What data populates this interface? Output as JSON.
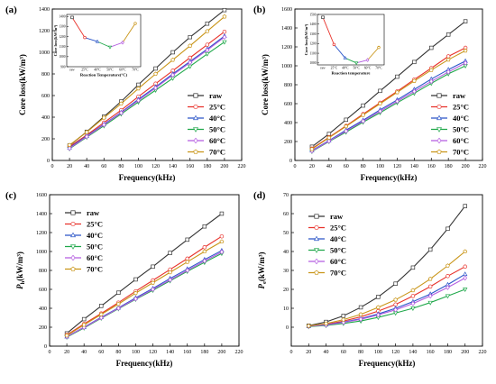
{
  "chart_data": [
    {
      "type": "line",
      "panel_label": "(a)",
      "xlabel": "Frequency(kHz)",
      "ylabel": "Core loss(kW/m³)",
      "xlim": [
        0,
        220
      ],
      "ylim": [
        0,
        1400
      ],
      "xticks": [
        0,
        20,
        40,
        60,
        80,
        100,
        120,
        140,
        160,
        180,
        200,
        220
      ],
      "yticks": [
        0,
        200,
        400,
        600,
        800,
        1000,
        1200,
        1400
      ],
      "x": [
        20,
        40,
        60,
        80,
        100,
        120,
        140,
        160,
        180,
        200
      ],
      "series": [
        {
          "name": "raw",
          "color": "#333333",
          "marker": "square",
          "values": [
            138,
            265,
            405,
            545,
            700,
            850,
            1000,
            1140,
            1265,
            1390
          ]
        },
        {
          "name": "25°C",
          "color": "#e8312a",
          "marker": "circle",
          "values": [
            128,
            235,
            350,
            465,
            590,
            710,
            830,
            950,
            1070,
            1190
          ]
        },
        {
          "name": "40°C",
          "color": "#2a55c8",
          "marker": "triangle-up",
          "values": [
            118,
            225,
            335,
            445,
            565,
            680,
            800,
            915,
            1030,
            1150
          ]
        },
        {
          "name": "50°C",
          "color": "#1fa84a",
          "marker": "triangle-down",
          "values": [
            108,
            215,
            320,
            430,
            540,
            650,
            760,
            870,
            985,
            1095
          ]
        },
        {
          "name": "60°C",
          "color": "#b35ce0",
          "marker": "diamond",
          "values": [
            112,
            220,
            330,
            440,
            555,
            670,
            790,
            905,
            1020,
            1140
          ]
        },
        {
          "name": "70°C",
          "color": "#c99518",
          "marker": "pentagon",
          "values": [
            142,
            262,
            395,
            525,
            665,
            800,
            930,
            1060,
            1195,
            1330
          ]
        }
      ],
      "inset": {
        "xlabel": "Reaction Temperature(°C)",
        "ylabel": "Core loss(kW/m³)",
        "categories": [
          "raw",
          "25°C",
          "40°C",
          "50°C",
          "60°C",
          "70°C"
        ],
        "yticks": [
          900,
          1000,
          1100,
          1200,
          1300,
          1400
        ],
        "ylim": [
          900,
          1420
        ],
        "values": [
          1390,
          1190,
          1150,
          1095,
          1140,
          1330
        ]
      }
    },
    {
      "type": "line",
      "panel_label": "(b)",
      "xlabel": "Frequency(kHz)",
      "ylabel": "Core loss(kW/m³)",
      "xlim": [
        0,
        220
      ],
      "ylim": [
        0,
        1600
      ],
      "xticks": [
        0,
        20,
        40,
        60,
        80,
        100,
        120,
        140,
        160,
        180,
        200,
        220
      ],
      "yticks": [
        0,
        200,
        400,
        600,
        800,
        1000,
        1200,
        1400,
        1600
      ],
      "x": [
        20,
        40,
        60,
        80,
        100,
        120,
        140,
        160,
        180,
        200
      ],
      "series": [
        {
          "name": "raw",
          "color": "#333333",
          "marker": "square",
          "values": [
            145,
            280,
            430,
            580,
            735,
            885,
            1040,
            1190,
            1330,
            1470
          ]
        },
        {
          "name": "25°C",
          "color": "#e8312a",
          "marker": "circle",
          "values": [
            125,
            245,
            365,
            490,
            610,
            730,
            855,
            975,
            1100,
            1190
          ]
        },
        {
          "name": "40°C",
          "color": "#2a55c8",
          "marker": "triangle-up",
          "values": [
            105,
            210,
            320,
            425,
            535,
            640,
            750,
            860,
            960,
            1050
          ]
        },
        {
          "name": "50°C",
          "color": "#1fa84a",
          "marker": "triangle-down",
          "values": [
            95,
            200,
            300,
            405,
            505,
            610,
            710,
            815,
            915,
            1000
          ]
        },
        {
          "name": "60°C",
          "color": "#b35ce0",
          "marker": "diamond",
          "values": [
            100,
            205,
            310,
            415,
            520,
            625,
            730,
            835,
            935,
            1030
          ]
        },
        {
          "name": "70°C",
          "color": "#c99518",
          "marker": "pentagon",
          "values": [
            120,
            240,
            360,
            480,
            600,
            720,
            840,
            955,
            1065,
            1160
          ]
        }
      ],
      "inset": {
        "xlabel": "Reaction temperature",
        "ylabel": "Core loss(kW/m³)",
        "categories": [
          "raw",
          "25°C",
          "40°C",
          "50°C",
          "60°C",
          "70°C"
        ],
        "yticks": [
          1000,
          1100,
          1200,
          1300,
          1400,
          1500
        ],
        "ylim": [
          980,
          1500
        ],
        "values": [
          1470,
          1190,
          1050,
          1000,
          1030,
          1160
        ]
      }
    },
    {
      "type": "line",
      "panel_label": "(c)",
      "xlabel": "Frequency(kHz)",
      "ylabel": "Ph(kW/m³)",
      "ylabel_main": "P",
      "ylabel_sub": "h",
      "ylabel_rest": "(kW/m³)",
      "xlim": [
        0,
        220
      ],
      "ylim": [
        0,
        1600
      ],
      "xticks": [
        0,
        20,
        40,
        60,
        80,
        100,
        120,
        140,
        160,
        180,
        200,
        220
      ],
      "yticks": [
        0,
        200,
        400,
        600,
        800,
        1000,
        1200,
        1400,
        1600
      ],
      "x": [
        20,
        40,
        60,
        80,
        100,
        120,
        140,
        160,
        180,
        200
      ],
      "series": [
        {
          "name": "raw",
          "color": "#333333",
          "marker": "square",
          "values": [
            135,
            285,
            425,
            565,
            705,
            840,
            985,
            1125,
            1265,
            1400
          ]
        },
        {
          "name": "25°C",
          "color": "#e8312a",
          "marker": "circle",
          "values": [
            118,
            235,
            345,
            460,
            580,
            695,
            810,
            925,
            1045,
            1160
          ]
        },
        {
          "name": "40°C",
          "color": "#2a55c8",
          "marker": "triangle-up",
          "values": [
            100,
            200,
            305,
            405,
            510,
            610,
            715,
            815,
            915,
            1010
          ]
        },
        {
          "name": "50°C",
          "color": "#1fa84a",
          "marker": "triangle-down",
          "values": [
            95,
            192,
            295,
            395,
            495,
            590,
            690,
            790,
            885,
            980
          ]
        },
        {
          "name": "60°C",
          "color": "#b35ce0",
          "marker": "diamond",
          "values": [
            100,
            198,
            300,
            400,
            500,
            600,
            700,
            800,
            900,
            995
          ]
        },
        {
          "name": "70°C",
          "color": "#c99518",
          "marker": "pentagon",
          "values": [
            112,
            225,
            335,
            445,
            560,
            670,
            780,
            890,
            1000,
            1105
          ]
        }
      ]
    },
    {
      "type": "line",
      "panel_label": "(d)",
      "xlabel": "Frequency(kHz)",
      "ylabel": "Pe(kW/m³)",
      "ylabel_main": "P",
      "ylabel_sub": "e",
      "ylabel_rest": "(kW/m³)",
      "xlim": [
        0,
        220
      ],
      "ylim": [
        -10,
        70
      ],
      "xticks": [
        0,
        20,
        40,
        60,
        80,
        100,
        120,
        140,
        160,
        180,
        200,
        220
      ],
      "yticks": [
        0,
        10,
        20,
        30,
        40,
        50,
        60,
        70
      ],
      "x": [
        20,
        40,
        60,
        80,
        100,
        120,
        140,
        160,
        180,
        200
      ],
      "series": [
        {
          "name": "raw",
          "color": "#333333",
          "marker": "square",
          "values": [
            0.8,
            2.8,
            6.0,
            10.5,
            16.0,
            23.0,
            31.5,
            41.0,
            52.0,
            64.0
          ]
        },
        {
          "name": "25°C",
          "color": "#e8312a",
          "marker": "circle",
          "values": [
            0.6,
            1.5,
            3.2,
            5.5,
            8.5,
            12.0,
            16.5,
            21.5,
            27.0,
            32.0
          ]
        },
        {
          "name": "40°C",
          "color": "#2a55c8",
          "marker": "triangle-up",
          "values": [
            0.5,
            1.3,
            2.7,
            4.5,
            7.0,
            10.0,
            13.5,
            17.5,
            22.5,
            28.0
          ]
        },
        {
          "name": "50°C",
          "color": "#1fa84a",
          "marker": "triangle-down",
          "values": [
            0.3,
            0.9,
            2.0,
            3.3,
            5.2,
            7.5,
            10.0,
            13.0,
            16.5,
            20.0
          ]
        },
        {
          "name": "60°C",
          "color": "#b35ce0",
          "marker": "diamond",
          "values": [
            0.5,
            1.2,
            2.5,
            4.2,
            6.5,
            9.2,
            12.5,
            16.5,
            21.0,
            26.0
          ]
        },
        {
          "name": "70°C",
          "color": "#c99518",
          "marker": "pentagon",
          "values": [
            0.7,
            1.9,
            4.0,
            6.8,
            10.5,
            14.5,
            19.5,
            25.5,
            32.5,
            40.0
          ]
        }
      ]
    }
  ]
}
